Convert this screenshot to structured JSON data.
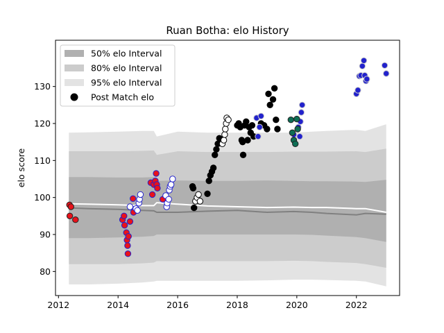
{
  "chart_data": {
    "type": "scatter",
    "title": "Ruan Botha: elo History",
    "xlabel": "",
    "ylabel": "elo score",
    "xlim": [
      2011.9,
      2023.45
    ],
    "ylim": [
      73.5,
      142.5
    ],
    "x_ticks": [
      2012,
      2014,
      2016,
      2018,
      2020,
      2022
    ],
    "x_tick_labels": [
      "2012",
      "2014",
      "2016",
      "2018",
      "2020",
      "2022"
    ],
    "y_ticks": [
      80,
      90,
      100,
      110,
      120,
      130
    ],
    "y_tick_labels": [
      "80",
      "90",
      "100",
      "110",
      "120",
      "130"
    ],
    "legend": {
      "position": "top-left",
      "entries": [
        {
          "label": "50% elo Interval",
          "kind": "band",
          "color": "#b0b0b0"
        },
        {
          "label": "80% elo Interval",
          "kind": "band",
          "color": "#cccccc"
        },
        {
          "label": "95% elo Interval",
          "kind": "band",
          "color": "#e3e3e3"
        },
        {
          "label": "Post Match elo",
          "kind": "marker",
          "color": "#000000"
        }
      ]
    },
    "bands": {
      "x": [
        2012.35,
        2013.0,
        2014.0,
        2014.8,
        2015.2,
        2015.3,
        2016.0,
        2017.0,
        2018.0,
        2019.0,
        2019.9,
        2020.5,
        2021.0,
        2022.0,
        2022.3,
        2023.0
      ],
      "p95_upper": [
        117.5,
        117.6,
        117.8,
        118.0,
        118.0,
        116.5,
        117.8,
        117.5,
        117.5,
        117.5,
        117.5,
        117.8,
        118.0,
        118.3,
        118.0,
        119.8
      ],
      "p95_lower": [
        76.5,
        76.5,
        76.7,
        77.0,
        77.3,
        77.5,
        77.5,
        77.5,
        77.5,
        77.6,
        77.8,
        77.8,
        77.7,
        77.5,
        77.3,
        76.0
      ],
      "p80_upper": [
        112.5,
        112.5,
        112.5,
        112.6,
        112.7,
        111.5,
        112.5,
        112.3,
        112.3,
        112.3,
        112.4,
        112.4,
        112.4,
        112.5,
        112.3,
        113.2
      ],
      "p80_lower": [
        82.0,
        82.0,
        82.0,
        82.2,
        82.4,
        82.8,
        82.8,
        82.8,
        82.8,
        82.8,
        82.9,
        82.8,
        82.6,
        82.3,
        82.0,
        81.0
      ],
      "p50_upper": [
        105.5,
        105.5,
        105.4,
        105.4,
        105.5,
        104.5,
        104.6,
        104.5,
        104.5,
        104.6,
        104.5,
        104.4,
        104.4,
        104.3,
        104.2,
        104.8
      ],
      "p50_lower": [
        89.0,
        89.0,
        89.2,
        89.4,
        89.6,
        90.0,
        90.0,
        90.0,
        90.0,
        90.0,
        90.0,
        89.9,
        89.7,
        89.3,
        89.0,
        88.0
      ],
      "median_line": [
        97.2,
        97.0,
        96.8,
        96.5,
        96.4,
        96.0,
        96.0,
        96.3,
        96.5,
        96.0,
        96.2,
        96.0,
        95.7,
        95.3,
        95.7,
        95.5
      ],
      "mean_line": [
        98.3,
        98.2,
        98.0,
        97.8,
        97.8,
        98.6,
        98.2,
        97.7,
        97.5,
        97.3,
        97.4,
        97.3,
        97.3,
        97.0,
        97.0,
        96.0
      ]
    },
    "band_colors": {
      "p95": "#e3e3e3",
      "p80": "#cccccc",
      "p50": "#b0b0b0",
      "median_line": "#808080",
      "mean_line": "#ffffff"
    },
    "series": [
      {
        "fill": "#e8121b",
        "edge": "#222222",
        "points": [
          [
            2012.37,
            98.0
          ],
          [
            2012.42,
            97.5
          ],
          [
            2012.38,
            95.0
          ],
          [
            2012.57,
            94.0
          ]
        ]
      },
      {
        "fill": "#e8121b",
        "edge": "#2222cc",
        "points": [
          [
            2014.15,
            94.0
          ],
          [
            2014.2,
            95.0
          ],
          [
            2014.22,
            92.5
          ],
          [
            2014.28,
            90.5
          ],
          [
            2014.3,
            88.5
          ],
          [
            2014.32,
            87.0
          ],
          [
            2014.35,
            89.5
          ],
          [
            2014.33,
            84.8
          ],
          [
            2014.4,
            93.5
          ],
          [
            2014.5,
            99.7
          ],
          [
            2014.52,
            96.0
          ]
        ]
      },
      {
        "fill": "#ffffff",
        "edge": "#2222cc",
        "points": [
          [
            2014.4,
            97.5
          ],
          [
            2014.6,
            97.0
          ],
          [
            2014.65,
            96.5
          ],
          [
            2014.7,
            98.5
          ],
          [
            2014.72,
            99.5
          ],
          [
            2014.75,
            100.8
          ]
        ]
      },
      {
        "fill": "#e8121b",
        "edge": "#2222cc",
        "points": [
          [
            2015.1,
            104.0
          ],
          [
            2015.15,
            100.8
          ],
          [
            2015.2,
            103.5
          ],
          [
            2015.25,
            104.5
          ],
          [
            2015.28,
            106.5
          ],
          [
            2015.3,
            103.5
          ],
          [
            2015.32,
            102.5
          ],
          [
            2015.5,
            99.5
          ]
        ]
      },
      {
        "fill": "#ffffff",
        "edge": "#2222cc",
        "points": [
          [
            2015.6,
            100.5
          ],
          [
            2015.63,
            97.5
          ],
          [
            2015.65,
            98.5
          ],
          [
            2015.7,
            99.5
          ],
          [
            2015.72,
            102.0
          ],
          [
            2015.75,
            103.0
          ],
          [
            2015.78,
            103.5
          ],
          [
            2015.83,
            105.0
          ]
        ]
      },
      {
        "fill": "#000000",
        "edge": "#000000",
        "points": [
          [
            2016.5,
            103.0
          ],
          [
            2016.52,
            102.5
          ],
          [
            2016.55,
            97.2
          ],
          [
            2017.0,
            101.0
          ],
          [
            2017.05,
            104.5
          ],
          [
            2017.1,
            106.0
          ],
          [
            2017.15,
            107.0
          ],
          [
            2017.2,
            108.0
          ],
          [
            2017.25,
            111.5
          ],
          [
            2017.3,
            113.0
          ],
          [
            2017.35,
            114.5
          ],
          [
            2017.4,
            116.0
          ]
        ]
      },
      {
        "fill": "#ffffff",
        "edge": "#000000",
        "points": [
          [
            2016.6,
            99.0
          ],
          [
            2016.65,
            100.0
          ],
          [
            2016.7,
            100.8
          ],
          [
            2016.75,
            99.0
          ],
          [
            2017.5,
            114.5
          ],
          [
            2017.55,
            115.5
          ],
          [
            2017.58,
            117.0
          ],
          [
            2017.6,
            118.5
          ],
          [
            2017.63,
            120.0
          ],
          [
            2017.65,
            121.5
          ],
          [
            2017.7,
            121.0
          ]
        ]
      },
      {
        "fill": "#000000",
        "edge": "#000000",
        "points": [
          [
            2018.0,
            119.5
          ],
          [
            2018.05,
            120.0
          ],
          [
            2018.1,
            119.0
          ],
          [
            2018.15,
            115.5
          ],
          [
            2018.18,
            115.0
          ],
          [
            2018.2,
            111.5
          ],
          [
            2018.25,
            119.5
          ],
          [
            2018.3,
            120.5
          ],
          [
            2018.35,
            115.5
          ],
          [
            2018.4,
            119.0
          ],
          [
            2018.45,
            117.5
          ],
          [
            2018.5,
            119.5
          ],
          [
            2018.55,
            116.5
          ],
          [
            2019.0,
            118.5
          ],
          [
            2019.05,
            128.0
          ],
          [
            2019.1,
            125.0
          ],
          [
            2019.2,
            126.5
          ],
          [
            2019.25,
            129.5
          ],
          [
            2019.3,
            121.0
          ],
          [
            2019.35,
            118.5
          ],
          [
            2018.8,
            120.0
          ],
          [
            2018.9,
            119.5
          ]
        ]
      },
      {
        "fill": "#2222cc",
        "edge": "#cccccc",
        "points": [
          [
            2018.65,
            121.5
          ],
          [
            2018.8,
            122.0
          ],
          [
            2018.75,
            119.0
          ],
          [
            2018.7,
            116.5
          ],
          [
            2019.9,
            117.0
          ],
          [
            2020.05,
            119.0
          ],
          [
            2020.1,
            116.5
          ],
          [
            2020.12,
            120.5
          ],
          [
            2020.15,
            123.0
          ],
          [
            2020.18,
            125.0
          ]
        ]
      },
      {
        "fill": "#0e6e55",
        "edge": "#222222",
        "points": [
          [
            2019.8,
            121.0
          ],
          [
            2019.85,
            117.5
          ],
          [
            2019.9,
            115.5
          ],
          [
            2019.95,
            114.5
          ],
          [
            2020.0,
            121.2
          ],
          [
            2020.03,
            118.5
          ]
        ]
      },
      {
        "fill": "#2222cc",
        "edge": "#cccccc",
        "points": [
          [
            2022.0,
            128.0
          ],
          [
            2022.05,
            129.0
          ],
          [
            2022.1,
            132.8
          ],
          [
            2022.15,
            133.0
          ],
          [
            2022.2,
            135.5
          ],
          [
            2022.25,
            137.0
          ],
          [
            2022.28,
            133.0
          ],
          [
            2022.32,
            131.5
          ],
          [
            2022.35,
            132.0
          ],
          [
            2022.95,
            135.7
          ],
          [
            2023.0,
            133.5
          ]
        ]
      }
    ]
  }
}
